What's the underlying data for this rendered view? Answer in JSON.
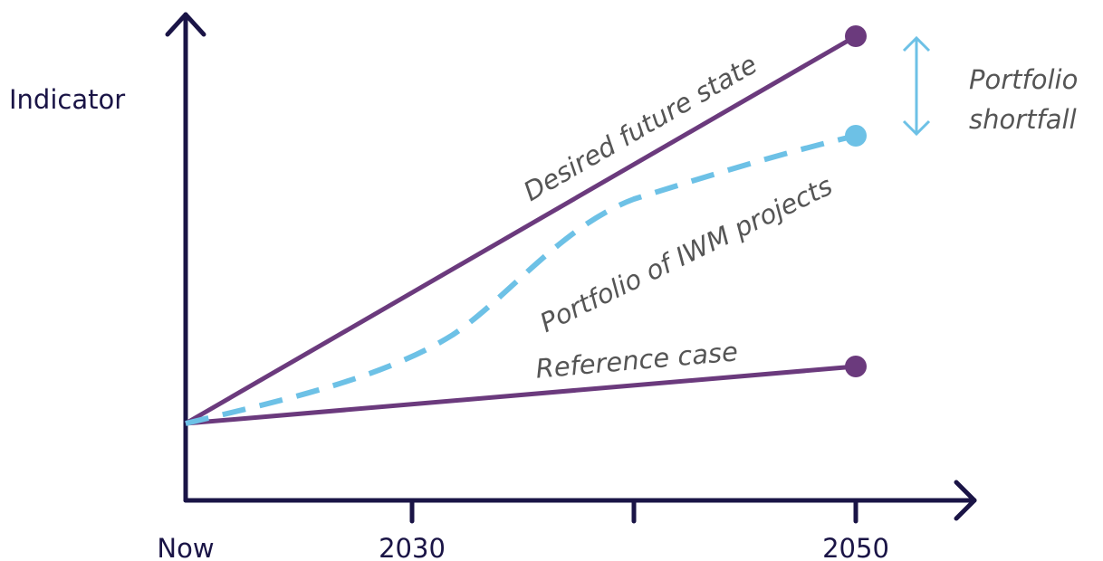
{
  "axis": {
    "y_label": "Indicator",
    "x_labels": [
      "Now",
      "2030",
      "2050"
    ]
  },
  "lines": [
    {
      "label": "Desired future state"
    },
    {
      "label": "Portfolio of IWM projects"
    },
    {
      "label": "Reference case"
    }
  ],
  "annotation": {
    "lines": [
      "Portfolio",
      "shortfall"
    ]
  }
}
